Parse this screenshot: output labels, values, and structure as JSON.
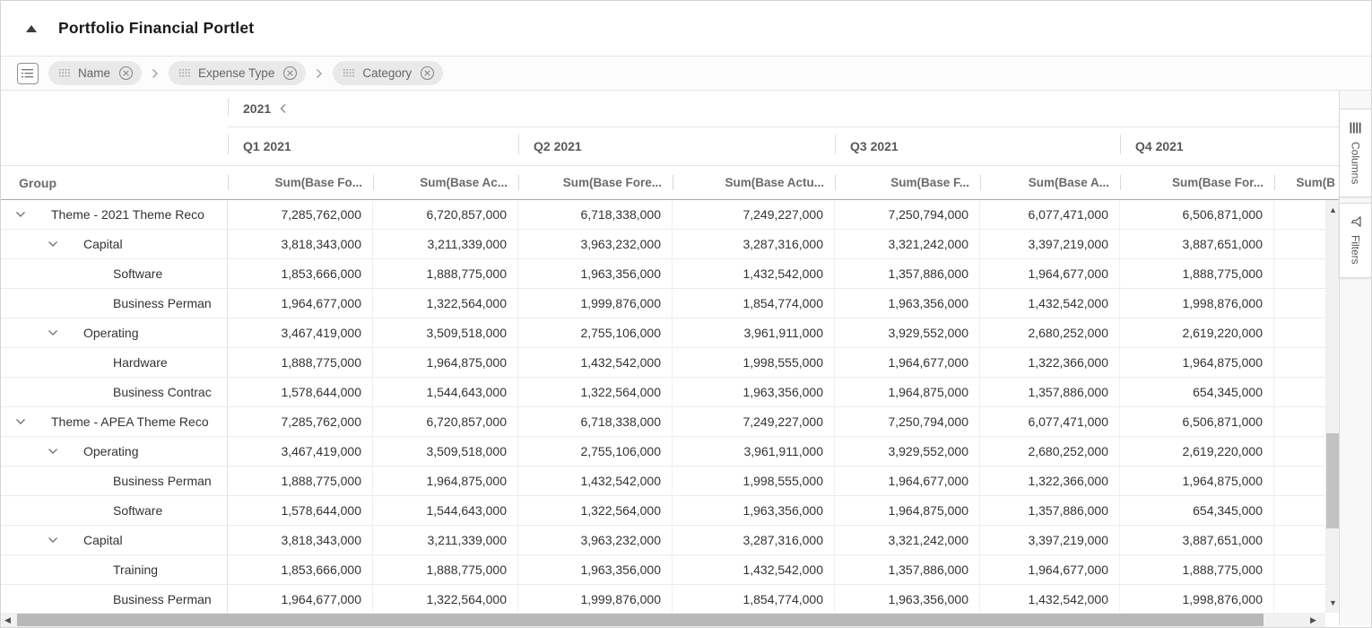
{
  "header": {
    "title": "Portfolio Financial Portlet"
  },
  "breadcrumb_bar": {
    "chips": [
      {
        "label": "Name"
      },
      {
        "label": "Expense Type"
      },
      {
        "label": "Category"
      }
    ],
    "separator": ">"
  },
  "table": {
    "year_header": {
      "label": "2021"
    },
    "quarters": [
      "Q1 2021",
      "Q2 2021",
      "Q3 2021",
      "Q4 2021"
    ],
    "group_column_header": "Group",
    "measure_headers": [
      "Sum(Base Fo...",
      "Sum(Base Ac...",
      "Sum(Base Fore...",
      "Sum(Base Actu...",
      "Sum(Base F...",
      "Sum(Base A...",
      "Sum(Base For...",
      "Sum(B"
    ],
    "rows": [
      {
        "level": 1,
        "expandable": true,
        "label": "Theme - 2021 Theme Reco",
        "values": [
          "7,285,762,000",
          "6,720,857,000",
          "6,718,338,000",
          "7,249,227,000",
          "7,250,794,000",
          "6,077,471,000",
          "6,506,871,000"
        ]
      },
      {
        "level": 2,
        "expandable": true,
        "label": "Capital",
        "values": [
          "3,818,343,000",
          "3,211,339,000",
          "3,963,232,000",
          "3,287,316,000",
          "3,321,242,000",
          "3,397,219,000",
          "3,887,651,000"
        ]
      },
      {
        "level": 3,
        "expandable": false,
        "label": "Software",
        "values": [
          "1,853,666,000",
          "1,888,775,000",
          "1,963,356,000",
          "1,432,542,000",
          "1,357,886,000",
          "1,964,677,000",
          "1,888,775,000"
        ]
      },
      {
        "level": 3,
        "expandable": false,
        "label": "Business Perman",
        "values": [
          "1,964,677,000",
          "1,322,564,000",
          "1,999,876,000",
          "1,854,774,000",
          "1,963,356,000",
          "1,432,542,000",
          "1,998,876,000"
        ]
      },
      {
        "level": 2,
        "expandable": true,
        "label": "Operating",
        "values": [
          "3,467,419,000",
          "3,509,518,000",
          "2,755,106,000",
          "3,961,911,000",
          "3,929,552,000",
          "2,680,252,000",
          "2,619,220,000"
        ]
      },
      {
        "level": 3,
        "expandable": false,
        "label": "Hardware",
        "values": [
          "1,888,775,000",
          "1,964,875,000",
          "1,432,542,000",
          "1,998,555,000",
          "1,964,677,000",
          "1,322,366,000",
          "1,964,875,000"
        ]
      },
      {
        "level": 3,
        "expandable": false,
        "label": "Business Contrac",
        "values": [
          "1,578,644,000",
          "1,544,643,000",
          "1,322,564,000",
          "1,963,356,000",
          "1,964,875,000",
          "1,357,886,000",
          "654,345,000"
        ]
      },
      {
        "level": 1,
        "expandable": true,
        "label": "Theme - APEA Theme Reco",
        "values": [
          "7,285,762,000",
          "6,720,857,000",
          "6,718,338,000",
          "7,249,227,000",
          "7,250,794,000",
          "6,077,471,000",
          "6,506,871,000"
        ]
      },
      {
        "level": 2,
        "expandable": true,
        "label": "Operating",
        "values": [
          "3,467,419,000",
          "3,509,518,000",
          "2,755,106,000",
          "3,961,911,000",
          "3,929,552,000",
          "2,680,252,000",
          "2,619,220,000"
        ]
      },
      {
        "level": 3,
        "expandable": false,
        "label": "Business Perman",
        "values": [
          "1,888,775,000",
          "1,964,875,000",
          "1,432,542,000",
          "1,998,555,000",
          "1,964,677,000",
          "1,322,366,000",
          "1,964,875,000"
        ]
      },
      {
        "level": 3,
        "expandable": false,
        "label": "Software",
        "values": [
          "1,578,644,000",
          "1,544,643,000",
          "1,322,564,000",
          "1,963,356,000",
          "1,964,875,000",
          "1,357,886,000",
          "654,345,000"
        ]
      },
      {
        "level": 2,
        "expandable": true,
        "label": "Capital",
        "values": [
          "3,818,343,000",
          "3,211,339,000",
          "3,963,232,000",
          "3,287,316,000",
          "3,321,242,000",
          "3,397,219,000",
          "3,887,651,000"
        ]
      },
      {
        "level": 3,
        "expandable": false,
        "label": "Training",
        "values": [
          "1,853,666,000",
          "1,888,775,000",
          "1,963,356,000",
          "1,432,542,000",
          "1,357,886,000",
          "1,964,677,000",
          "1,888,775,000"
        ]
      },
      {
        "level": 3,
        "expandable": false,
        "label": "Business Perman",
        "values": [
          "1,964,677,000",
          "1,322,564,000",
          "1,999,876,000",
          "1,854,774,000",
          "1,963,356,000",
          "1,432,542,000",
          "1,998,876,000"
        ]
      }
    ]
  },
  "side_panel": {
    "tabs": [
      {
        "label": "Columns"
      },
      {
        "label": "Filters"
      }
    ]
  },
  "icons": {
    "collapse": "triangle-up",
    "toolbar": "list-settings",
    "chip_drag": "grip-dots",
    "chip_remove": "circle-x",
    "breadcrumb_separator": "chevron-right",
    "year_back": "chevron-left",
    "row_expand": "chevron-down",
    "columns_tab": "columns-bars",
    "filters_tab": "funnel",
    "scroll_up": "▲",
    "scroll_down": "▼",
    "scroll_left": "◀",
    "scroll_right": "▶"
  },
  "colors": {
    "chip_background": "#e9e9e9",
    "header_text": "#6b6b6b",
    "data_text": "#333333",
    "header_underline": "#a9a9a9"
  }
}
